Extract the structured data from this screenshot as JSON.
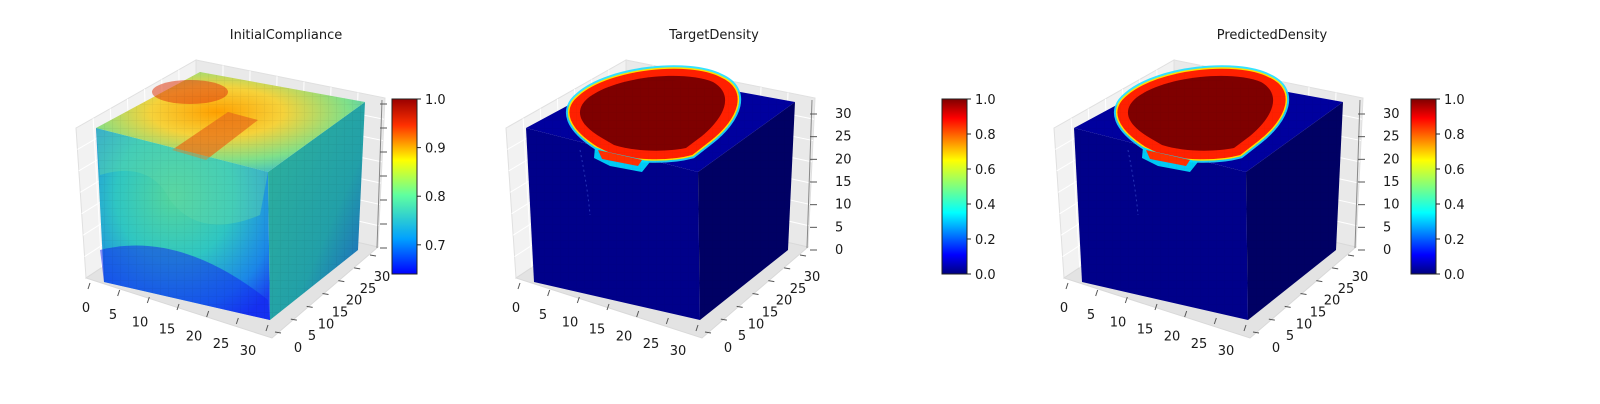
{
  "chart_data": [
    {
      "type": "voxel3d",
      "title": "InitialCompliance",
      "x_ticks": [
        "0",
        "5",
        "10",
        "15",
        "20",
        "25",
        "30"
      ],
      "y_ticks": [
        "0",
        "5",
        "10",
        "15",
        "20",
        "25",
        "30"
      ],
      "z_ticks": [],
      "colorbar": {
        "ticks": [
          "0.7",
          "0.8",
          "0.9",
          "1.0"
        ],
        "range": [
          0.64,
          1.0
        ],
        "colormap": "jet"
      }
    },
    {
      "type": "voxel3d",
      "title": "TargetDensity",
      "x_ticks": [
        "0",
        "5",
        "10",
        "15",
        "20",
        "25",
        "30"
      ],
      "y_ticks": [
        "0",
        "5",
        "10",
        "15",
        "20",
        "25",
        "30"
      ],
      "z_ticks": [
        "0",
        "5",
        "10",
        "15",
        "20",
        "25",
        "30"
      ],
      "colorbar": {
        "ticks": [
          "0.0",
          "0.2",
          "0.4",
          "0.6",
          "0.8",
          "1.0"
        ],
        "range": [
          0.0,
          1.0
        ],
        "colormap": "jet"
      }
    },
    {
      "type": "voxel3d",
      "title": "PredictedDensity",
      "x_ticks": [
        "0",
        "5",
        "10",
        "15",
        "20",
        "25",
        "30"
      ],
      "y_ticks": [
        "0",
        "5",
        "10",
        "15",
        "20",
        "25",
        "30"
      ],
      "z_ticks": [
        "0",
        "5",
        "10",
        "15",
        "20",
        "25",
        "30"
      ],
      "colorbar": {
        "ticks": [
          "0.0",
          "0.2",
          "0.4",
          "0.6",
          "0.8",
          "1.0"
        ],
        "range": [
          0.0,
          1.0
        ],
        "colormap": "jet"
      }
    }
  ]
}
